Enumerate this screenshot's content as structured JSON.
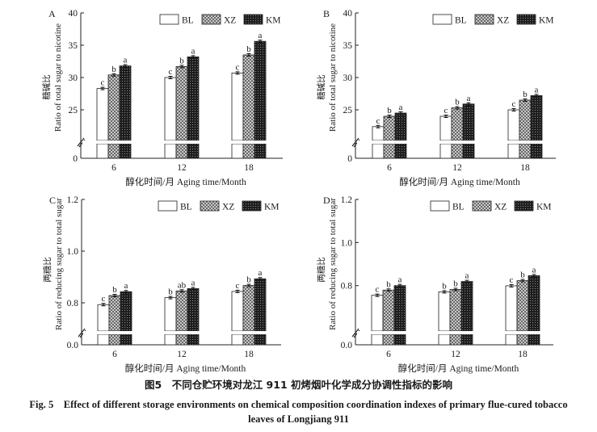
{
  "figure": {
    "caption_cn": "图5　不同仓贮环境对龙江 911 初烤烟叶化学成分协调性指标的影响",
    "caption_en_line1": "Fig. 5　Effect of different storage environments on chemical composition coordination indexes of primary flue-cured tobacco",
    "caption_en_line2": "leaves of Longjiang 911"
  },
  "legend": [
    {
      "name": "BL",
      "pattern": "white"
    },
    {
      "name": "XZ",
      "pattern": "crosshatch-light"
    },
    {
      "name": "KM",
      "pattern": "crosshatch-dark"
    }
  ],
  "chart_data": [
    {
      "panel": "A",
      "type": "bar",
      "ylabel_cn": "糖碱比",
      "ylabel": "Ratio of total sugar to nicotine",
      "xlabel": "醇化时间/月 Aging time/Month",
      "categories": [
        "6",
        "12",
        "18"
      ],
      "yticks": [
        "0",
        "25",
        "30",
        "35",
        "40"
      ],
      "ylim": [
        20,
        40
      ],
      "axis_break": true,
      "series": [
        {
          "name": "BL",
          "values": [
            28.3,
            30.0,
            30.7
          ],
          "letters": [
            "c",
            "c",
            "c"
          ]
        },
        {
          "name": "XZ",
          "values": [
            30.4,
            31.7,
            33.5
          ],
          "letters": [
            "b",
            "b",
            "b"
          ]
        },
        {
          "name": "KM",
          "values": [
            31.8,
            33.2,
            35.6
          ],
          "letters": [
            "a",
            "a",
            "a"
          ]
        }
      ]
    },
    {
      "panel": "B",
      "type": "bar",
      "ylabel_cn": "糖碱比",
      "ylabel": "Ratio of total sugar to nicotine",
      "xlabel": "醇化时间/月 Aging time/Month",
      "categories": [
        "6",
        "12",
        "18"
      ],
      "yticks": [
        "0",
        "25",
        "30",
        "35",
        "40"
      ],
      "ylim": [
        20,
        40
      ],
      "axis_break": true,
      "series": [
        {
          "name": "BL",
          "values": [
            22.4,
            24.0,
            25.0
          ],
          "letters": [
            "c",
            "c",
            "c"
          ]
        },
        {
          "name": "XZ",
          "values": [
            24.0,
            25.3,
            26.5
          ],
          "letters": [
            "b",
            "b",
            "b"
          ]
        },
        {
          "name": "KM",
          "values": [
            24.5,
            25.9,
            27.2
          ],
          "letters": [
            "a",
            "a",
            "a"
          ]
        }
      ]
    },
    {
      "panel": "C",
      "type": "bar",
      "ylabel_cn": "两糖比",
      "ylabel": "Ratio of reducing sugar to total sugar",
      "xlabel": "醇化时间/月 Aging time/Month",
      "categories": [
        "6",
        "12",
        "18"
      ],
      "yticks": [
        "0.0",
        "0.8",
        "1.0",
        "1.2"
      ],
      "ylim": [
        0.6,
        1.2
      ],
      "axis_break": true,
      "series": [
        {
          "name": "BL",
          "values": [
            0.793,
            0.82,
            0.844
          ],
          "letters": [
            "c",
            "b",
            "c"
          ]
        },
        {
          "name": "XZ",
          "values": [
            0.828,
            0.846,
            0.867
          ],
          "letters": [
            "b",
            "ab",
            "b"
          ]
        },
        {
          "name": "KM",
          "values": [
            0.843,
            0.855,
            0.893
          ],
          "letters": [
            "a",
            "a",
            "a"
          ]
        }
      ]
    },
    {
      "panel": "D",
      "type": "bar",
      "ylabel_cn": "两糖比",
      "ylabel": "Ratio of reducing sugar to total sugar",
      "xlabel": "醇化时间/月 Aging time/Month",
      "categories": [
        "6",
        "12",
        "18"
      ],
      "yticks": [
        "0.0",
        "0.8",
        "1.0",
        "1.2"
      ],
      "ylim": [
        0.6,
        1.2
      ],
      "axis_break": true,
      "series": [
        {
          "name": "BL",
          "values": [
            0.755,
            0.771,
            0.799
          ],
          "letters": [
            "c",
            "b",
            "c"
          ]
        },
        {
          "name": "XZ",
          "values": [
            0.779,
            0.782,
            0.823
          ],
          "letters": [
            "b",
            "b",
            "b"
          ]
        },
        {
          "name": "KM",
          "values": [
            0.8,
            0.819,
            0.846
          ],
          "letters": [
            "a",
            "a",
            "a"
          ]
        }
      ]
    }
  ]
}
